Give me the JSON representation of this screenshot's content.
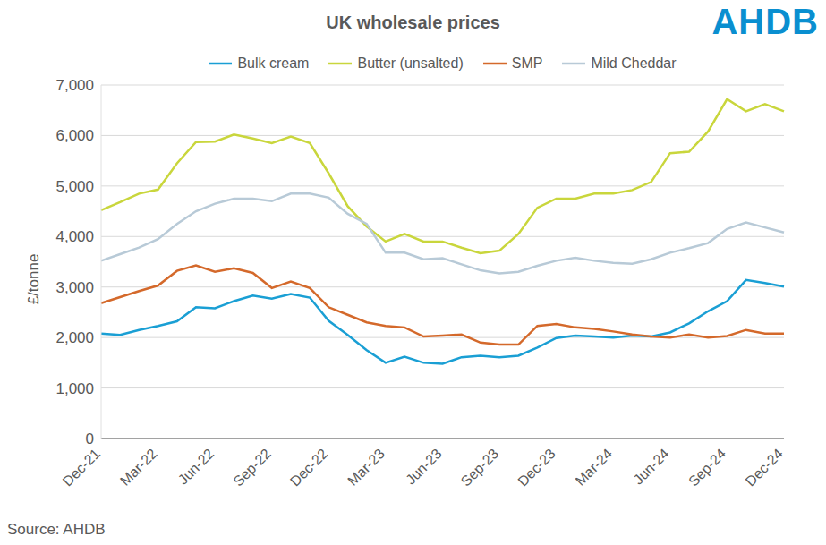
{
  "chart_data": {
    "type": "line",
    "title": "UK wholesale prices",
    "logo": "AHDB",
    "source": "Source: AHDB",
    "y_label": "£/tonne",
    "categories": [
      "Dec-21",
      null,
      null,
      "Mar-22",
      null,
      null,
      "Jun-22",
      null,
      null,
      "Sep-22",
      null,
      null,
      "Dec-22",
      null,
      null,
      "Mar-23",
      null,
      null,
      "Jun-23",
      null,
      null,
      "Sep-23",
      null,
      null,
      "Dec-23",
      null,
      null,
      "Mar-24",
      null,
      null,
      "Jun-24",
      null,
      null,
      "Sep-24",
      null,
      null,
      "Dec-24"
    ],
    "series": [
      {
        "name": "Bulk cream",
        "color": "#1a9fd4",
        "values": [
          2080,
          2050,
          2150,
          2230,
          2320,
          2600,
          2580,
          2720,
          2830,
          2770,
          2860,
          2790,
          2330,
          2050,
          1750,
          1500,
          1620,
          1500,
          1480,
          1610,
          1640,
          1610,
          1640,
          1800,
          1990,
          2040,
          2020,
          2000,
          2040,
          2020,
          2100,
          2280,
          2520,
          2720,
          3140,
          3080,
          3010
        ]
      },
      {
        "name": "Butter (unsalted)",
        "color": "#c9d63c",
        "values": [
          4520,
          4680,
          4850,
          4930,
          5450,
          5870,
          5880,
          6020,
          5940,
          5850,
          5980,
          5850,
          5250,
          4600,
          4200,
          3900,
          4050,
          3900,
          3900,
          3780,
          3670,
          3720,
          4050,
          4570,
          4750,
          4750,
          4850,
          4850,
          4920,
          5080,
          5650,
          5680,
          6080,
          6720,
          6480,
          6620,
          6480
        ]
      },
      {
        "name": "SMP",
        "color": "#d4692b",
        "values": [
          2680,
          2800,
          2920,
          3030,
          3320,
          3430,
          3300,
          3370,
          3280,
          2980,
          3110,
          2980,
          2600,
          2450,
          2300,
          2230,
          2200,
          2020,
          2040,
          2060,
          1900,
          1860,
          1860,
          2230,
          2270,
          2200,
          2170,
          2120,
          2060,
          2020,
          2000,
          2060,
          2000,
          2030,
          2150,
          2080,
          2080
        ]
      },
      {
        "name": "Mild Cheddar",
        "color": "#b8cad7",
        "values": [
          3520,
          3650,
          3780,
          3950,
          4250,
          4500,
          4650,
          4750,
          4750,
          4700,
          4850,
          4850,
          4770,
          4450,
          4250,
          3680,
          3680,
          3550,
          3570,
          3450,
          3330,
          3270,
          3300,
          3420,
          3520,
          3580,
          3520,
          3480,
          3460,
          3550,
          3680,
          3770,
          3870,
          4150,
          4280,
          4180,
          4080
        ]
      }
    ],
    "ylim": [
      0,
      7000
    ],
    "yticks": [
      0,
      {
        "value": 1000,
        "label": "1,000"
      },
      {
        "value": 2000,
        "label": "2,000"
      },
      {
        "value": 3000,
        "label": "3,000"
      },
      {
        "value": 4000,
        "label": "4,000"
      },
      {
        "value": 5000,
        "label": "5,000"
      },
      {
        "value": 6000,
        "label": "6,000"
      },
      {
        "value": 7000,
        "label": "7,000"
      }
    ],
    "grid": true,
    "legend": "top"
  }
}
